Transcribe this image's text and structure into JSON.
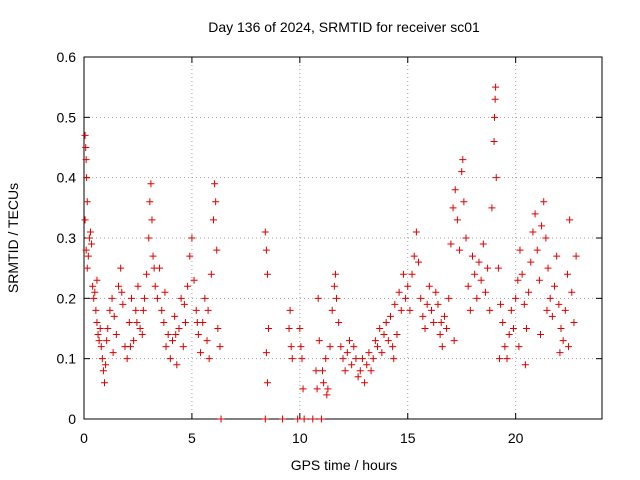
{
  "chart_data": {
    "type": "scatter",
    "title": "Day 136 of 2024, SRMTID for receiver sc01",
    "xlabel": "GPS time / hours",
    "ylabel": "SRMTID / TECUs",
    "xlim": [
      0,
      24
    ],
    "ylim": [
      0,
      0.6
    ],
    "xticks": [
      0,
      5,
      10,
      15,
      20
    ],
    "xtick_labels": [
      "0",
      "5",
      "10",
      "15",
      "20"
    ],
    "yticks": [
      0,
      0.1,
      0.2,
      0.3,
      0.4,
      0.5,
      0.6
    ],
    "ytick_labels": [
      "0",
      "0.1",
      "0.2",
      "0.3",
      "0.4",
      "0.5",
      "0.6"
    ],
    "grid": true,
    "marker": "+",
    "color": "#e00000",
    "series": [
      {
        "name": "SRMTID",
        "points": [
          [
            0.05,
            0.47
          ],
          [
            0.08,
            0.45
          ],
          [
            0.1,
            0.43
          ],
          [
            0.12,
            0.4
          ],
          [
            0.15,
            0.36
          ],
          [
            0.05,
            0.33
          ],
          [
            0.1,
            0.28
          ],
          [
            0.2,
            0.27
          ],
          [
            0.25,
            0.3
          ],
          [
            0.3,
            0.31
          ],
          [
            0.35,
            0.29
          ],
          [
            0.15,
            0.25
          ],
          [
            0.4,
            0.22
          ],
          [
            0.45,
            0.2
          ],
          [
            0.5,
            0.21
          ],
          [
            0.55,
            0.18
          ],
          [
            0.6,
            0.16
          ],
          [
            0.65,
            0.14
          ],
          [
            0.7,
            0.13
          ],
          [
            0.75,
            0.15
          ],
          [
            0.8,
            0.12
          ],
          [
            0.85,
            0.1
          ],
          [
            0.9,
            0.08
          ],
          [
            0.95,
            0.06
          ],
          [
            1.0,
            0.09
          ],
          [
            1.1,
            0.15
          ],
          [
            1.2,
            0.18
          ],
          [
            1.3,
            0.2
          ],
          [
            1.4,
            0.17
          ],
          [
            1.5,
            0.14
          ],
          [
            1.6,
            0.22
          ],
          [
            1.7,
            0.25
          ],
          [
            1.8,
            0.19
          ],
          [
            1.9,
            0.12
          ],
          [
            2.0,
            0.1
          ],
          [
            2.1,
            0.16
          ],
          [
            2.2,
            0.2
          ],
          [
            2.3,
            0.13
          ],
          [
            2.4,
            0.18
          ],
          [
            2.5,
            0.22
          ],
          [
            2.6,
            0.15
          ],
          [
            2.7,
            0.14
          ],
          [
            2.8,
            0.2
          ],
          [
            2.9,
            0.24
          ],
          [
            3.0,
            0.3
          ],
          [
            3.05,
            0.36
          ],
          [
            3.1,
            0.39
          ],
          [
            3.15,
            0.33
          ],
          [
            3.2,
            0.27
          ],
          [
            3.3,
            0.22
          ],
          [
            3.4,
            0.2
          ],
          [
            3.5,
            0.25
          ],
          [
            3.6,
            0.18
          ],
          [
            3.7,
            0.16
          ],
          [
            3.8,
            0.12
          ],
          [
            3.9,
            0.14
          ],
          [
            4.0,
            0.1
          ],
          [
            4.1,
            0.13
          ],
          [
            4.2,
            0.17
          ],
          [
            4.3,
            0.09
          ],
          [
            4.4,
            0.15
          ],
          [
            4.5,
            0.2
          ],
          [
            4.6,
            0.12
          ],
          [
            4.7,
            0.16
          ],
          [
            4.8,
            0.22
          ],
          [
            4.9,
            0.27
          ],
          [
            5.0,
            0.3
          ],
          [
            5.1,
            0.23
          ],
          [
            5.2,
            0.18
          ],
          [
            5.3,
            0.14
          ],
          [
            5.4,
            0.11
          ],
          [
            5.5,
            0.16
          ],
          [
            5.6,
            0.2
          ],
          [
            5.7,
            0.13
          ],
          [
            5.8,
            0.1
          ],
          [
            5.9,
            0.24
          ],
          [
            6.0,
            0.33
          ],
          [
            6.05,
            0.39
          ],
          [
            6.1,
            0.36
          ],
          [
            6.15,
            0.28
          ],
          [
            6.2,
            0.15
          ],
          [
            6.3,
            0.12
          ],
          [
            6.35,
            0.0
          ],
          [
            0.6,
            0.23
          ],
          [
            1.05,
            0.13
          ],
          [
            1.35,
            0.11
          ],
          [
            1.75,
            0.21
          ],
          [
            2.15,
            0.12
          ],
          [
            2.45,
            0.16
          ],
          [
            2.75,
            0.18
          ],
          [
            3.25,
            0.25
          ],
          [
            3.75,
            0.21
          ],
          [
            4.25,
            0.14
          ],
          [
            4.65,
            0.19
          ],
          [
            5.25,
            0.16
          ],
          [
            5.75,
            0.18
          ],
          [
            8.4,
            0.31
          ],
          [
            8.45,
            0.28
          ],
          [
            8.5,
            0.24
          ],
          [
            8.55,
            0.15
          ],
          [
            8.45,
            0.11
          ],
          [
            8.5,
            0.06
          ],
          [
            8.4,
            0.0
          ],
          [
            9.2,
            0.0
          ],
          [
            9.5,
            0.15
          ],
          [
            9.55,
            0.18
          ],
          [
            9.6,
            0.12
          ],
          [
            9.65,
            0.1
          ],
          [
            9.9,
            0.0
          ],
          [
            10.0,
            0.15
          ],
          [
            10.05,
            0.12
          ],
          [
            10.1,
            0.1
          ],
          [
            10.15,
            0.05
          ],
          [
            10.2,
            0.0
          ],
          [
            10.6,
            0.0
          ],
          [
            10.75,
            0.08
          ],
          [
            10.8,
            0.05
          ],
          [
            10.85,
            0.2
          ],
          [
            10.9,
            0.13
          ],
          [
            11.0,
            0.0
          ],
          [
            11.05,
            0.08
          ],
          [
            11.1,
            0.06
          ],
          [
            11.2,
            0.1
          ],
          [
            11.25,
            0.04
          ],
          [
            11.3,
            0.05
          ],
          [
            11.4,
            0.12
          ],
          [
            11.5,
            0.18
          ],
          [
            11.6,
            0.22
          ],
          [
            11.65,
            0.24
          ],
          [
            11.7,
            0.2
          ],
          [
            11.8,
            0.16
          ],
          [
            11.9,
            0.12
          ],
          [
            12.0,
            0.1
          ],
          [
            12.1,
            0.08
          ],
          [
            12.2,
            0.11
          ],
          [
            12.3,
            0.13
          ],
          [
            12.4,
            0.09
          ],
          [
            12.5,
            0.12
          ],
          [
            12.6,
            0.1
          ],
          [
            12.7,
            0.07
          ],
          [
            12.8,
            0.08
          ],
          [
            12.9,
            0.1
          ],
          [
            13.0,
            0.06
          ],
          [
            13.1,
            0.09
          ],
          [
            13.2,
            0.11
          ],
          [
            13.3,
            0.08
          ],
          [
            13.4,
            0.1
          ],
          [
            13.5,
            0.13
          ],
          [
            13.6,
            0.12
          ],
          [
            13.7,
            0.15
          ],
          [
            13.8,
            0.11
          ],
          [
            13.9,
            0.14
          ],
          [
            14.0,
            0.16
          ],
          [
            14.1,
            0.13
          ],
          [
            14.2,
            0.17
          ],
          [
            14.3,
            0.12
          ],
          [
            14.4,
            0.19
          ],
          [
            14.5,
            0.14
          ],
          [
            14.6,
            0.21
          ],
          [
            14.7,
            0.18
          ],
          [
            14.8,
            0.24
          ],
          [
            14.9,
            0.2
          ],
          [
            15.0,
            0.22
          ],
          [
            15.1,
            0.18
          ],
          [
            15.2,
            0.24
          ],
          [
            15.3,
            0.27
          ],
          [
            15.4,
            0.31
          ],
          [
            15.5,
            0.26
          ],
          [
            15.6,
            0.2
          ],
          [
            15.7,
            0.17
          ],
          [
            15.8,
            0.15
          ],
          [
            15.9,
            0.19
          ],
          [
            16.0,
            0.22
          ],
          [
            16.1,
            0.18
          ],
          [
            16.2,
            0.16
          ],
          [
            16.3,
            0.21
          ],
          [
            16.4,
            0.19
          ],
          [
            16.5,
            0.14
          ],
          [
            16.6,
            0.12
          ],
          [
            16.7,
            0.17
          ],
          [
            16.8,
            0.15
          ],
          [
            16.9,
            0.2
          ],
          [
            17.0,
            0.29
          ],
          [
            17.1,
            0.35
          ],
          [
            17.2,
            0.38
          ],
          [
            17.3,
            0.33
          ],
          [
            17.4,
            0.28
          ],
          [
            17.5,
            0.41
          ],
          [
            17.55,
            0.43
          ],
          [
            17.6,
            0.36
          ],
          [
            17.7,
            0.3
          ],
          [
            17.8,
            0.22
          ],
          [
            17.9,
            0.18
          ],
          [
            18.0,
            0.27
          ],
          [
            18.1,
            0.24
          ],
          [
            18.2,
            0.2
          ],
          [
            18.3,
            0.26
          ],
          [
            18.4,
            0.23
          ],
          [
            18.5,
            0.29
          ],
          [
            18.6,
            0.21
          ],
          [
            18.7,
            0.25
          ],
          [
            18.8,
            0.18
          ],
          [
            18.9,
            0.35
          ],
          [
            19.0,
            0.46
          ],
          [
            19.02,
            0.5
          ],
          [
            19.05,
            0.53
          ],
          [
            19.07,
            0.55
          ],
          [
            19.1,
            0.4
          ],
          [
            19.2,
            0.25
          ],
          [
            19.3,
            0.19
          ],
          [
            19.4,
            0.16
          ],
          [
            19.5,
            0.12
          ],
          [
            19.6,
            0.1
          ],
          [
            19.7,
            0.14
          ],
          [
            19.8,
            0.18
          ],
          [
            19.9,
            0.15
          ],
          [
            20.0,
            0.2
          ],
          [
            20.1,
            0.23
          ],
          [
            20.2,
            0.28
          ],
          [
            20.3,
            0.24
          ],
          [
            20.4,
            0.19
          ],
          [
            20.5,
            0.15
          ],
          [
            20.6,
            0.21
          ],
          [
            20.7,
            0.26
          ],
          [
            20.8,
            0.31
          ],
          [
            20.9,
            0.34
          ],
          [
            21.0,
            0.28
          ],
          [
            21.1,
            0.23
          ],
          [
            21.2,
            0.32
          ],
          [
            21.3,
            0.36
          ],
          [
            21.4,
            0.3
          ],
          [
            21.5,
            0.25
          ],
          [
            21.6,
            0.2
          ],
          [
            21.7,
            0.17
          ],
          [
            21.8,
            0.22
          ],
          [
            21.9,
            0.27
          ],
          [
            22.0,
            0.19
          ],
          [
            22.1,
            0.15
          ],
          [
            22.2,
            0.13
          ],
          [
            22.3,
            0.18
          ],
          [
            22.4,
            0.24
          ],
          [
            22.5,
            0.33
          ],
          [
            22.6,
            0.21
          ],
          [
            22.7,
            0.16
          ],
          [
            22.8,
            0.27
          ],
          [
            19.25,
            0.1
          ],
          [
            20.15,
            0.12
          ],
          [
            20.45,
            0.09
          ],
          [
            21.15,
            0.14
          ],
          [
            21.45,
            0.18
          ],
          [
            22.05,
            0.11
          ],
          [
            22.45,
            0.12
          ],
          [
            17.15,
            0.13
          ],
          [
            16.55,
            0.16
          ],
          [
            14.35,
            0.1
          ]
        ]
      }
    ]
  }
}
